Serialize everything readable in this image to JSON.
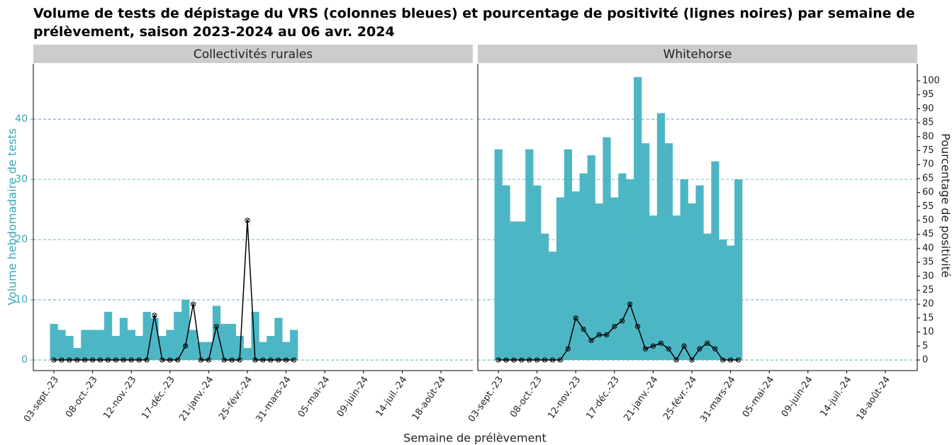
{
  "chart_data": {
    "type": "bar",
    "title": [
      "Volume de tests de dépistage du VRS (colonnes bleues) et pourcentage de positivité (lignes noires) par semaine de",
      "prélèvement, saison 2023-2024 au 06 avr. 2024"
    ],
    "x_label": "Semaine de prélèvement",
    "y_label": "Volume hebdomadaire de tests",
    "y2_label": "Pourcentage de positivité",
    "categories": [
      "03-sept.-23",
      null,
      null,
      null,
      null,
      "08-oct.-23",
      null,
      null,
      null,
      null,
      "12-nov.-23",
      null,
      null,
      null,
      null,
      "17-déc.-23",
      null,
      null,
      null,
      null,
      "21-janv.-24",
      null,
      null,
      null,
      null,
      "25-févr.-24",
      null,
      null,
      null,
      null,
      "31-mars-24",
      null,
      null,
      null,
      null,
      "05-mai-24",
      null,
      null,
      null,
      null,
      "09-juin-24",
      null,
      null,
      null,
      null,
      "14-juil.-24",
      null,
      null,
      null,
      null,
      "18-août-24"
    ],
    "ylim": [
      -1.76,
      49.2
    ],
    "yticks": [
      0,
      10,
      20,
      30,
      40
    ],
    "y2lim": [
      -3.8,
      106.1
    ],
    "y2ticks": [
      0,
      5,
      10,
      15,
      20,
      25,
      30,
      35,
      40,
      45,
      50,
      55,
      60,
      65,
      70,
      75,
      80,
      85,
      90,
      95,
      100
    ],
    "grid": true,
    "facets": [
      {
        "title": "Collectivités rurales",
        "series": [
          {
            "color": "#4db6c4",
            "values": [
              6,
              5,
              4,
              2,
              5,
              5,
              5,
              8,
              4,
              7,
              5,
              4,
              8,
              7,
              4,
              5,
              8,
              10,
              5,
              3,
              3,
              9,
              6,
              6,
              4,
              2,
              8,
              3,
              4,
              7,
              3,
              5,
              null,
              null,
              null,
              null,
              null,
              null,
              null,
              null,
              null,
              null,
              null,
              null,
              null,
              null,
              null,
              null,
              null,
              null,
              null
            ]
          },
          {
            "type": "line",
            "axis": "y2",
            "color": "#000000",
            "values": [
              0,
              0,
              0,
              0,
              0,
              0,
              0,
              0,
              0,
              0,
              0,
              0,
              0,
              16,
              0,
              0,
              0,
              5,
              20,
              0,
              0,
              12,
              0,
              0,
              0,
              50,
              0,
              0,
              0,
              0,
              0,
              0,
              null,
              null,
              null,
              null,
              null,
              null,
              null,
              null,
              null,
              null,
              null,
              null,
              null,
              null,
              null,
              null,
              null,
              null,
              null
            ]
          }
        ]
      },
      {
        "title": "Whitehorse",
        "series": [
          {
            "color": "#4db6c4",
            "values": [
              35,
              29,
              23,
              23,
              35,
              29,
              21,
              18,
              27,
              35,
              28,
              31,
              34,
              26,
              37,
              27,
              31,
              30,
              47,
              36,
              24,
              41,
              36,
              24,
              30,
              26,
              29,
              21,
              33,
              20,
              19,
              30,
              null,
              null,
              null,
              null,
              null,
              null,
              null,
              null,
              null,
              null,
              null,
              null,
              null,
              null,
              null,
              null,
              null,
              null,
              null
            ]
          },
          {
            "type": "line",
            "axis": "y2",
            "color": "#000000",
            "values": [
              0,
              0,
              0,
              0,
              0,
              0,
              0,
              0,
              0,
              4,
              15,
              11,
              7,
              9,
              9,
              12,
              14,
              20,
              12,
              4,
              5,
              6,
              4,
              0,
              5,
              0,
              4,
              6,
              4,
              0,
              0,
              0,
              null,
              null,
              null,
              null,
              null,
              null,
              null,
              null,
              null,
              null,
              null,
              null,
              null,
              null,
              null,
              null,
              null,
              null,
              null
            ]
          }
        ]
      }
    ]
  }
}
